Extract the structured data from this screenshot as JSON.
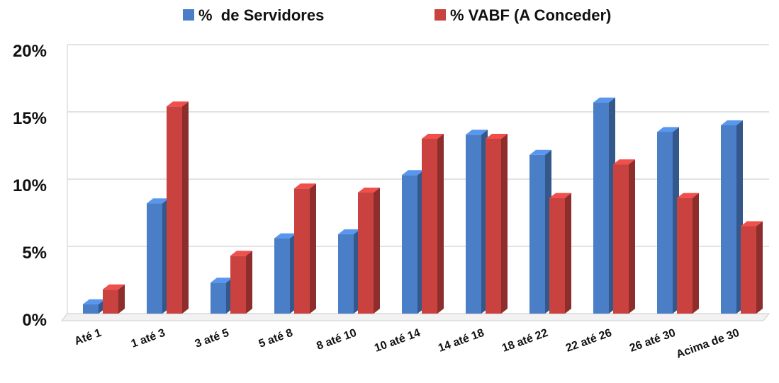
{
  "chart_data": {
    "type": "bar3d",
    "categories": [
      "Até 1",
      "1 até 3",
      "3 até 5",
      "5 até 8",
      "8 até 10",
      "10 até 14",
      "14 até 18",
      "18 até 22",
      "22 até 26",
      "26 até 30",
      "Acima de 30"
    ],
    "series": [
      {
        "name": "%  de Servidores",
        "color": "#4a7ec6",
        "values": [
          0.7,
          8.2,
          2.3,
          5.6,
          5.9,
          10.3,
          13.3,
          11.8,
          15.7,
          13.5,
          14.0
        ]
      },
      {
        "name": "% VABF (A Conceder)",
        "color": "#c9423f",
        "values": [
          1.8,
          15.4,
          4.3,
          9.3,
          9.0,
          13.0,
          13.0,
          8.6,
          11.1,
          8.6,
          6.5
        ]
      }
    ],
    "ylim": [
      0,
      20
    ],
    "yticks": [
      {
        "value": 0,
        "label": "0%"
      },
      {
        "value": 5,
        "label": "5%"
      },
      {
        "value": 10,
        "label": "10%"
      },
      {
        "value": 15,
        "label": "15%"
      },
      {
        "value": 20,
        "label": "20%"
      }
    ],
    "grid": true,
    "legend": "top"
  }
}
